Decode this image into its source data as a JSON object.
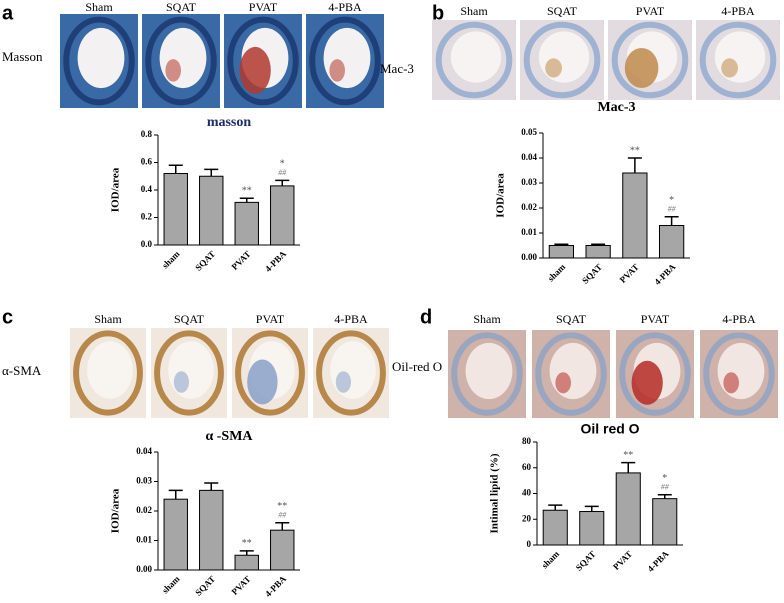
{
  "panels": [
    {
      "letter": "a",
      "stain": "Masson",
      "groups": [
        "Sham",
        "SQAT",
        "PVAT",
        "4-PBA"
      ]
    },
    {
      "letter": "b",
      "stain": "Mac-3",
      "groups": [
        "Sham",
        "SQAT",
        "PVAT",
        "4-PBA"
      ]
    },
    {
      "letter": "c",
      "stain": "α-SMA",
      "groups": [
        "Sham",
        "SQAT",
        "PVAT",
        "4-PBA"
      ]
    },
    {
      "letter": "d",
      "stain": "Oil-red O",
      "groups": [
        "Sham",
        "SQAT",
        "PVAT",
        "4-PBA"
      ]
    }
  ],
  "chart_data": [
    {
      "type": "bar",
      "title": "masson",
      "y_label": "IOD/area",
      "categories": [
        "sham",
        "SQAT",
        "PVAT",
        "4-PBA"
      ],
      "values": [
        0.52,
        0.5,
        0.31,
        0.43
      ],
      "errors": [
        0.06,
        0.05,
        0.03,
        0.04
      ],
      "color": "#a6a6a6",
      "sig_star": [
        null,
        null,
        "**",
        "*"
      ],
      "sig_hash": [
        null,
        null,
        null,
        "##"
      ],
      "ylim": [
        0,
        0.8
      ],
      "yticks": [
        {
          "value": 0,
          "label": "0.0"
        },
        0.2,
        0.4,
        0.6,
        0.8
      ]
    },
    {
      "type": "bar",
      "title": "Mac-3",
      "y_label": "IOD/area",
      "categories": [
        "sham",
        "SQAT",
        "PVAT",
        "4-PBA"
      ],
      "values": [
        0.005,
        0.005,
        0.034,
        0.013
      ],
      "errors": [
        0.0005,
        0.0005,
        0.006,
        0.0035
      ],
      "color": "#a6a6a6",
      "sig_star": [
        null,
        null,
        "**",
        "*"
      ],
      "sig_hash": [
        null,
        null,
        null,
        "##"
      ],
      "ylim": [
        0,
        0.05
      ],
      "yticks": [
        {
          "value": 0,
          "label": "0.00"
        },
        0.01,
        0.02,
        0.03,
        0.04,
        0.05
      ]
    },
    {
      "type": "bar",
      "title": "α -SMA",
      "y_label": "IOD/area",
      "categories": [
        "sham",
        "SQAT",
        "PVAT",
        "4-PBA"
      ],
      "values": [
        0.024,
        0.027,
        0.005,
        0.0135
      ],
      "errors": [
        0.003,
        0.0025,
        0.0015,
        0.0025
      ],
      "color": "#a6a6a6",
      "sig_star": [
        null,
        null,
        "**",
        "**"
      ],
      "sig_hash": [
        null,
        null,
        null,
        "##"
      ],
      "ylim": [
        0,
        0.04
      ],
      "yticks": [
        {
          "value": 0,
          "label": "0.00"
        },
        0.01,
        0.02,
        0.03,
        0.04
      ]
    },
    {
      "type": "bar",
      "title": "Oil red O",
      "y_label": "Intimal lipid (%)",
      "categories": [
        "sham",
        "SQAT",
        "PVAT",
        "4-PBA"
      ],
      "values": [
        27,
        26,
        56,
        36
      ],
      "errors": [
        4,
        4,
        8,
        3
      ],
      "color": "#a6a6a6",
      "sig_star": [
        null,
        null,
        "**",
        "*"
      ],
      "sig_hash": [
        null,
        null,
        null,
        "##"
      ],
      "ylim": [
        0,
        80
      ],
      "yticks": [
        0,
        20,
        40,
        60,
        80
      ]
    }
  ]
}
